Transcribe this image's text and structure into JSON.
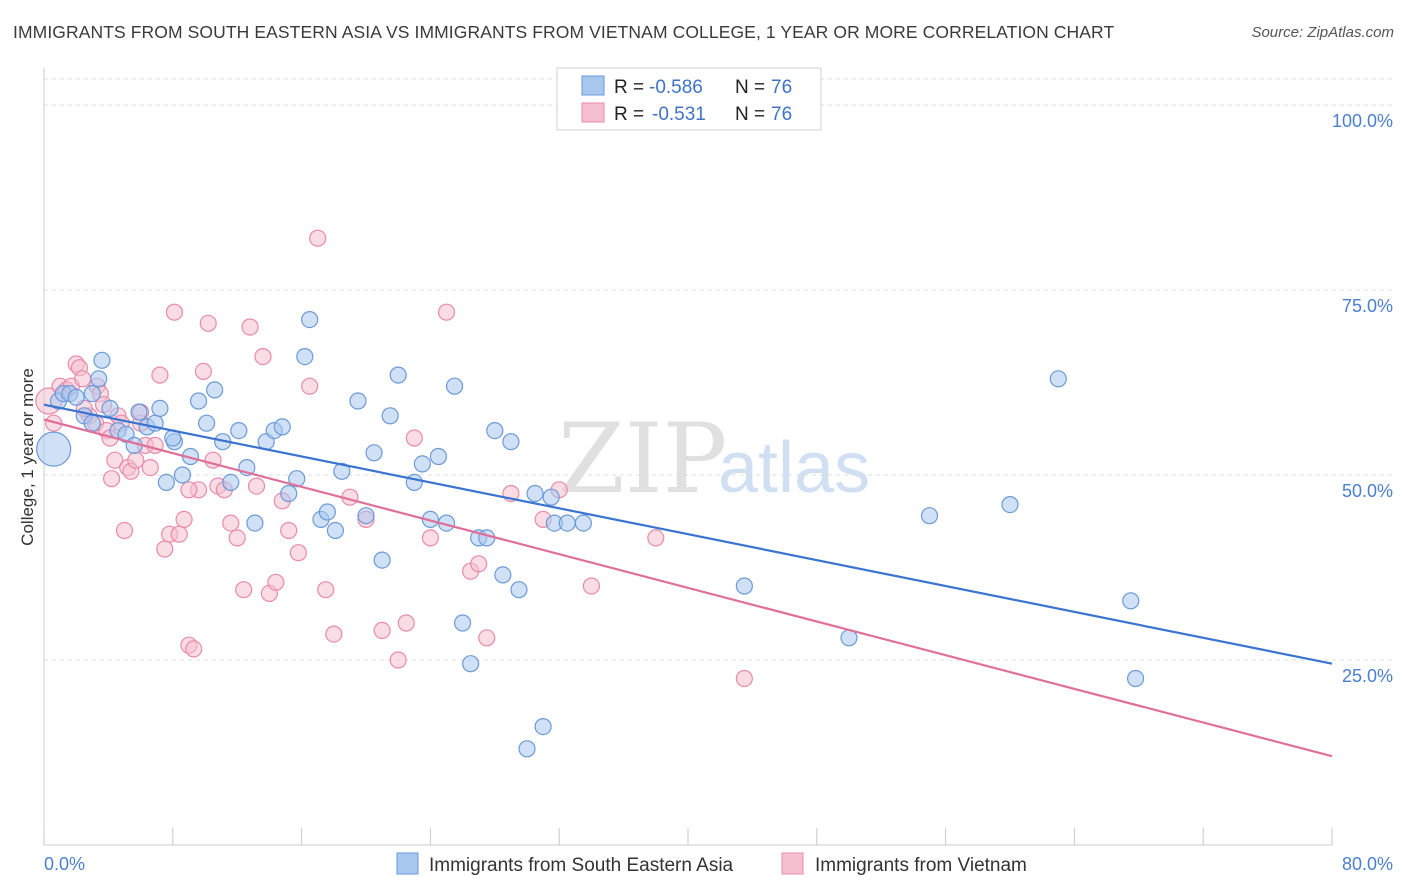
{
  "header": {
    "title": "IMMIGRANTS FROM SOUTH EASTERN ASIA VS IMMIGRANTS FROM VIETNAM COLLEGE, 1 YEAR OR MORE CORRELATION CHART",
    "source": "Source: ZipAtlas.com"
  },
  "watermark": {
    "zip": "ZIP",
    "atlas": "atlas"
  },
  "colors": {
    "blue_fill": "#a9c8f0",
    "blue_stroke": "#6a9ad8",
    "blue_line": "#3a74d0",
    "pink_fill": "#f6bfd0",
    "pink_stroke": "#e98aaa",
    "pink_line": "#e0709a",
    "grid": "#dddddd",
    "axis_text": "#4a7fcf"
  },
  "stats_legend": {
    "rows": [
      {
        "r_label": "R = ",
        "r_value": "-0.586",
        "n_label": "N = ",
        "n_value": "76"
      },
      {
        "r_label": "R = ",
        "r_value": "-0.531",
        "n_label": "N = ",
        "n_value": "76"
      }
    ]
  },
  "chart_data": {
    "type": "scatter",
    "title": "IMMIGRANTS FROM SOUTH EASTERN ASIA VS IMMIGRANTS FROM VIETNAM COLLEGE, 1 YEAR OR MORE CORRELATION CHART",
    "xlabel": "",
    "ylabel": "College, 1 year or more",
    "xlim": [
      0,
      80
    ],
    "ylim": [
      0,
      105
    ],
    "x_tick_labels": [
      "0.0%",
      "80.0%"
    ],
    "y_ticks": [
      25,
      50,
      75,
      100
    ],
    "y_tick_labels": [
      "25.0%",
      "50.0%",
      "75.0%",
      "100.0%"
    ],
    "grid": true,
    "legend_position": "bottom",
    "series": [
      {
        "name": "Immigrants from South Eastern Asia",
        "color": "#a9c8f0",
        "r": -0.586,
        "n": 76,
        "trend": {
          "x": [
            0,
            80
          ],
          "y": [
            59.5,
            24.5
          ]
        },
        "points": [
          [
            0.6,
            53.5
          ],
          [
            0.9,
            60
          ],
          [
            1.2,
            61
          ],
          [
            1.6,
            61
          ],
          [
            2,
            60.5
          ],
          [
            2.5,
            58
          ],
          [
            3,
            61
          ],
          [
            3.4,
            63
          ],
          [
            3.6,
            65.5
          ],
          [
            4.1,
            59
          ],
          [
            4.6,
            56
          ],
          [
            5.1,
            55.5
          ],
          [
            5.6,
            54
          ],
          [
            5.9,
            58.5
          ],
          [
            6.4,
            56.5
          ],
          [
            6.9,
            57
          ],
          [
            7.2,
            59
          ],
          [
            7.6,
            49
          ],
          [
            8.1,
            54.5
          ],
          [
            8.6,
            50
          ],
          [
            9.1,
            52.5
          ],
          [
            9.6,
            60
          ],
          [
            10.1,
            57
          ],
          [
            10.6,
            61.5
          ],
          [
            11.1,
            54.5
          ],
          [
            11.6,
            49
          ],
          [
            12.1,
            56
          ],
          [
            12.6,
            51
          ],
          [
            13.1,
            43.5
          ],
          [
            13.8,
            54.5
          ],
          [
            14.3,
            56
          ],
          [
            14.8,
            56.5
          ],
          [
            15.2,
            47.5
          ],
          [
            15.7,
            49.5
          ],
          [
            16.2,
            66
          ],
          [
            16.5,
            71
          ],
          [
            17.2,
            44
          ],
          [
            17.6,
            45
          ],
          [
            18.1,
            42.5
          ],
          [
            18.5,
            50.5
          ],
          [
            19.5,
            60
          ],
          [
            20,
            44.5
          ],
          [
            20.5,
            53
          ],
          [
            21,
            38.5
          ],
          [
            21.5,
            58
          ],
          [
            22,
            63.5
          ],
          [
            23,
            49
          ],
          [
            23.5,
            51.5
          ],
          [
            24,
            44
          ],
          [
            24.5,
            52.5
          ],
          [
            25,
            43.5
          ],
          [
            25.5,
            62
          ],
          [
            26,
            30
          ],
          [
            26.5,
            24.5
          ],
          [
            27,
            41.5
          ],
          [
            27.5,
            41.5
          ],
          [
            28.5,
            36.5
          ],
          [
            29,
            54.5
          ],
          [
            29.5,
            34.5
          ],
          [
            30.5,
            47.5
          ],
          [
            31,
            16
          ],
          [
            31.7,
            43.5
          ],
          [
            32.5,
            43.5
          ],
          [
            33.5,
            43.5
          ],
          [
            31.5,
            47
          ],
          [
            30,
            13
          ],
          [
            43.5,
            35
          ],
          [
            50,
            28
          ],
          [
            55,
            44.5
          ],
          [
            60,
            46
          ],
          [
            63,
            63
          ],
          [
            67.5,
            33
          ],
          [
            67.8,
            22.5
          ],
          [
            3,
            57
          ],
          [
            8,
            55
          ],
          [
            28,
            56
          ]
        ]
      },
      {
        "name": "Immigrants from Vietnam",
        "color": "#f6bfd0",
        "r": -0.531,
        "n": 76,
        "trend": {
          "x": [
            0,
            80
          ],
          "y": [
            57.5,
            12
          ]
        },
        "points": [
          [
            0.3,
            60
          ],
          [
            0.6,
            57
          ],
          [
            1,
            62
          ],
          [
            1.4,
            61.5
          ],
          [
            1.7,
            62
          ],
          [
            2,
            65
          ],
          [
            2.2,
            64.5
          ],
          [
            2.4,
            63
          ],
          [
            2.8,
            58
          ],
          [
            3.2,
            57
          ],
          [
            3.3,
            62
          ],
          [
            3.5,
            61
          ],
          [
            3.7,
            59.5
          ],
          [
            3.9,
            56
          ],
          [
            4.1,
            55
          ],
          [
            4.2,
            49.5
          ],
          [
            4.4,
            52
          ],
          [
            4.6,
            58
          ],
          [
            4.8,
            57
          ],
          [
            5,
            42.5
          ],
          [
            5.2,
            51
          ],
          [
            5.4,
            50.5
          ],
          [
            5.7,
            52
          ],
          [
            6,
            57
          ],
          [
            6.3,
            54
          ],
          [
            6.6,
            51
          ],
          [
            6.9,
            54
          ],
          [
            7.2,
            63.5
          ],
          [
            7.5,
            40
          ],
          [
            7.8,
            42
          ],
          [
            8.1,
            72
          ],
          [
            8.4,
            42
          ],
          [
            8.7,
            44
          ],
          [
            9,
            27
          ],
          [
            9.3,
            26.5
          ],
          [
            9.6,
            48
          ],
          [
            9.9,
            64
          ],
          [
            10.2,
            70.5
          ],
          [
            10.5,
            52
          ],
          [
            10.8,
            48.5
          ],
          [
            11.2,
            48
          ],
          [
            11.6,
            43.5
          ],
          [
            12,
            41.5
          ],
          [
            12.4,
            34.5
          ],
          [
            12.8,
            70
          ],
          [
            13.2,
            48.5
          ],
          [
            13.6,
            66
          ],
          [
            14,
            34
          ],
          [
            14.4,
            35.5
          ],
          [
            14.8,
            46.5
          ],
          [
            15.2,
            42.5
          ],
          [
            15.8,
            39.5
          ],
          [
            16.5,
            62
          ],
          [
            17,
            82
          ],
          [
            17.5,
            34.5
          ],
          [
            18,
            28.5
          ],
          [
            19,
            47
          ],
          [
            20,
            44
          ],
          [
            21,
            29
          ],
          [
            22,
            25
          ],
          [
            22.5,
            30
          ],
          [
            23,
            55
          ],
          [
            24,
            41.5
          ],
          [
            25,
            72
          ],
          [
            26.5,
            37
          ],
          [
            27,
            38
          ],
          [
            27.5,
            28
          ],
          [
            29,
            47.5
          ],
          [
            31,
            44
          ],
          [
            32,
            48
          ],
          [
            34,
            35
          ],
          [
            38,
            41.5
          ],
          [
            43.5,
            22.5
          ],
          [
            2.5,
            59
          ],
          [
            6,
            58.5
          ],
          [
            9,
            48
          ]
        ]
      }
    ]
  },
  "bottom_legend": {
    "items": [
      {
        "label": "Immigrants from South Eastern Asia"
      },
      {
        "label": "Immigrants from Vietnam"
      }
    ]
  }
}
